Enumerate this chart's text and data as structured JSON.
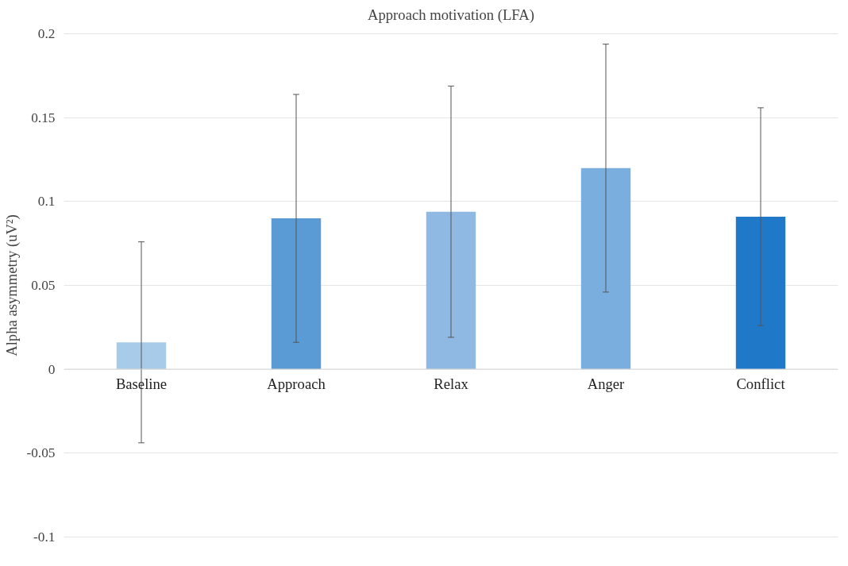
{
  "chart_data": {
    "type": "bar",
    "title": "Approach motivation (LFA)",
    "ylabel": "Alpha asymmetry (uV²)",
    "categories": [
      "Baseline",
      "Approach",
      "Relax",
      "Anger",
      "Conflict"
    ],
    "values": [
      0.016,
      0.09,
      0.094,
      0.12,
      0.091
    ],
    "errors": [
      0.06,
      0.074,
      0.075,
      0.074,
      0.065
    ],
    "colors": [
      "#a9cbea",
      "#5b9bd5",
      "#8fb9e3",
      "#7aaedf",
      "#1f78c8"
    ],
    "ylim": [
      -0.1,
      0.2
    ],
    "yticks": [
      -0.1,
      -0.05,
      0,
      0.05,
      0.1,
      0.15,
      0.2
    ],
    "grid": "y"
  }
}
